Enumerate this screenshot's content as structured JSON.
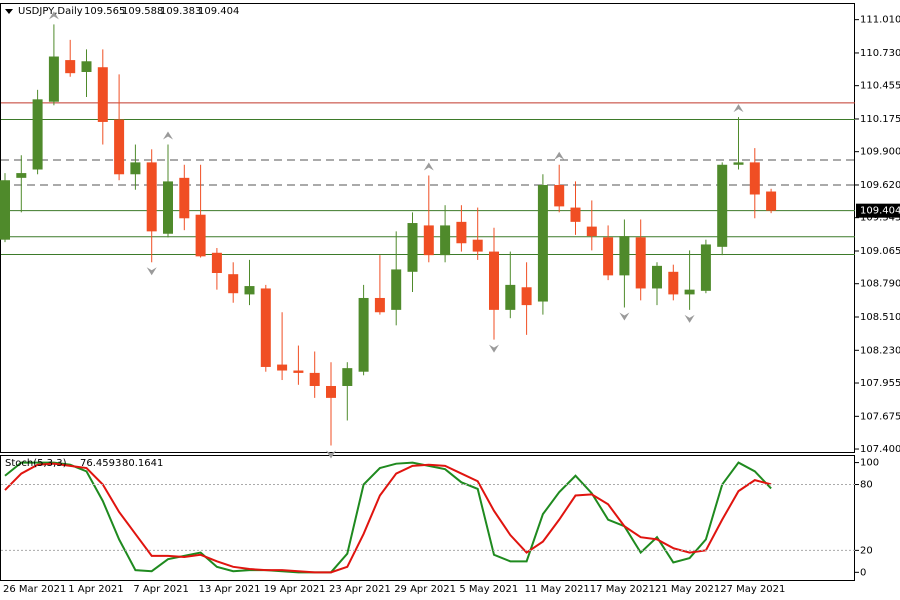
{
  "chart_data": [
    {
      "type": "candlestick",
      "symbol": "USDJPY,Daily",
      "categories": [
        "26 Mar 2021",
        null,
        null,
        null,
        "1 Apr 2021",
        null,
        null,
        null,
        "7 Apr 2021",
        null,
        null,
        null,
        "13 Apr 2021",
        null,
        null,
        null,
        "19 Apr 2021",
        null,
        null,
        null,
        "23 Apr 2021",
        null,
        null,
        null,
        "29 Apr 2021",
        null,
        null,
        null,
        "5 May 2021",
        null,
        null,
        null,
        "11 May 2021",
        null,
        null,
        null,
        "17 May 2021",
        null,
        null,
        null,
        "21 May 2021",
        null,
        null,
        null,
        "27 May 2021",
        null,
        null,
        null
      ],
      "open": [
        109.16,
        109.68,
        109.75,
        110.32,
        110.67,
        110.57,
        110.61,
        110.17,
        109.71,
        109.81,
        109.21,
        109.68,
        109.37,
        109.05,
        108.87,
        108.7,
        108.75,
        108.11,
        108.06,
        108.04,
        107.93,
        107.93,
        108.05,
        108.67,
        108.57,
        108.89,
        109.28,
        109.03,
        109.31,
        109.16,
        109.06,
        108.57,
        108.76,
        108.64,
        109.62,
        109.43,
        109.27,
        109.18,
        108.86,
        109.18,
        108.75,
        108.89,
        108.7,
        108.73,
        109.1,
        109.79,
        109.81,
        109.565
      ],
      "high": [
        109.72,
        109.87,
        110.42,
        110.97,
        110.84,
        110.76,
        110.76,
        110.55,
        109.96,
        109.92,
        109.96,
        109.79,
        109.79,
        109.09,
        108.97,
        108.99,
        108.78,
        108.55,
        108.27,
        108.22,
        108.13,
        108.13,
        108.78,
        109.03,
        109.23,
        109.39,
        109.7,
        109.45,
        109.45,
        109.43,
        109.26,
        109.06,
        108.97,
        109.71,
        109.79,
        109.65,
        109.49,
        109.28,
        109.33,
        109.33,
        108.97,
        108.95,
        109.07,
        109.16,
        109.81,
        110.19,
        109.93,
        109.588
      ],
      "low": [
        109.14,
        109.39,
        109.71,
        110.29,
        110.53,
        110.36,
        109.96,
        109.66,
        109.58,
        108.97,
        109.18,
        109.24,
        109.01,
        108.74,
        108.63,
        108.61,
        108.05,
        107.98,
        107.94,
        107.83,
        107.43,
        107.64,
        108.02,
        108.53,
        108.44,
        108.72,
        108.97,
        108.97,
        109.06,
        108.99,
        108.32,
        108.5,
        108.36,
        108.53,
        109.39,
        109.2,
        109.07,
        108.82,
        108.59,
        108.65,
        108.61,
        108.65,
        108.57,
        108.71,
        109.03,
        109.75,
        109.34,
        109.383
      ],
      "close": [
        109.66,
        109.72,
        110.34,
        110.7,
        110.56,
        110.66,
        110.15,
        109.71,
        109.81,
        109.23,
        109.65,
        109.34,
        109.02,
        108.88,
        108.71,
        108.77,
        108.09,
        108.06,
        108.04,
        107.93,
        107.83,
        108.08,
        108.67,
        108.55,
        108.91,
        109.3,
        109.03,
        109.28,
        109.13,
        109.06,
        108.57,
        108.78,
        108.61,
        109.62,
        109.44,
        109.31,
        109.19,
        108.86,
        109.19,
        108.75,
        108.94,
        108.7,
        108.74,
        109.12,
        109.79,
        109.81,
        109.54,
        109.404
      ],
      "up_color": "#4f8a2b",
      "down_color": "#f04e23",
      "fractals": {
        "up": [
          3,
          10,
          26,
          34,
          45
        ],
        "down": [
          9,
          20,
          30,
          38,
          42
        ]
      },
      "levels": [
        {
          "value": 110.31,
          "color": "#c0392b",
          "style": "solid"
        },
        {
          "value": 110.17,
          "color": "#3d7a2a",
          "style": "solid"
        },
        {
          "value": 109.83,
          "color": "#555555",
          "style": "dashed"
        },
        {
          "value": 109.62,
          "color": "#555555",
          "style": "dashed"
        },
        {
          "value": 109.404,
          "color": "#3d7a2a",
          "style": "solid"
        },
        {
          "value": 109.185,
          "color": "#3d7a2a",
          "style": "solid"
        },
        {
          "value": 109.035,
          "color": "#3d7a2a",
          "style": "solid"
        }
      ],
      "ylim": [
        107.375,
        111.15
      ],
      "yticks": [
        {
          "value": 111.01,
          "label": "111.010"
        },
        {
          "value": 110.73,
          "label": "110.730"
        },
        {
          "value": 110.455,
          "label": "110.455"
        },
        {
          "value": 110.175,
          "label": "110.175"
        },
        {
          "value": 109.9,
          "label": "109.900"
        },
        {
          "value": 109.62,
          "label": "109.620"
        },
        {
          "value": 109.345,
          "label": "109.345"
        },
        {
          "value": 109.065,
          "label": "109.065"
        },
        {
          "value": 108.79,
          "label": "108.790"
        },
        {
          "value": 108.51,
          "label": "108.510"
        },
        {
          "value": 108.23,
          "label": "108.230"
        },
        {
          "value": 107.955,
          "label": "107.955"
        },
        {
          "value": 107.675,
          "label": "107.675"
        },
        {
          "value": 107.4,
          "label": "107.400"
        }
      ]
    },
    {
      "type": "line",
      "name": "Stoch(5,3,3)",
      "series": [
        {
          "color": "#1f8a1f",
          "values": [
            88,
            100,
            100,
            100,
            98,
            92,
            65,
            30,
            2,
            1,
            12,
            15,
            18,
            5,
            1,
            2,
            2,
            1,
            0,
            0,
            0,
            17,
            80,
            95,
            99,
            100,
            97,
            94,
            82,
            76,
            16,
            10,
            10,
            53,
            73,
            88,
            72,
            48,
            42,
            18,
            32,
            9,
            13,
            30,
            80,
            100,
            92,
            76.4593
          ]
        },
        {
          "color": "#e0140f",
          "values": [
            75,
            90,
            98,
            99,
            97,
            95,
            80,
            55,
            35,
            15,
            15,
            14,
            16,
            10,
            5,
            3,
            2,
            2,
            1,
            0,
            0,
            5,
            35,
            70,
            90,
            97,
            98,
            97,
            90,
            83,
            56,
            34,
            18,
            28,
            48,
            70,
            71,
            62,
            42,
            32,
            30,
            22,
            18,
            20,
            48,
            74,
            84,
            80.1641
          ]
        }
      ],
      "ylim": [
        -7,
        106
      ],
      "yticks": [
        0,
        20,
        80,
        100
      ],
      "dotted_levels": [
        20,
        80
      ]
    }
  ]
}
